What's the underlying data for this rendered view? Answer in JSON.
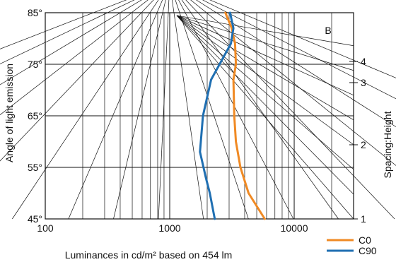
{
  "chart_data": {
    "type": "line",
    "xscale": "log",
    "xlim": [
      100,
      30000
    ],
    "ylim": [
      45,
      85
    ],
    "xlabel": "Luminances in cd/m² based on 454 lm",
    "ylabel": "Angle of light emission",
    "y2label": "Spacing:Height",
    "panel_label": "B",
    "grid": true,
    "x_ticks": [
      {
        "value": 100,
        "label": "100"
      },
      {
        "value": 1000,
        "label": "1000"
      },
      {
        "value": 10000,
        "label": "10000"
      }
    ],
    "y_ticks": [
      {
        "value": 45,
        "label": "45°"
      },
      {
        "value": 55,
        "label": "55°"
      },
      {
        "value": 65,
        "label": "65°"
      },
      {
        "value": 75,
        "label": "75°"
      },
      {
        "value": 85,
        "label": "85°"
      }
    ],
    "spacing_ticks": [
      {
        "value": 1,
        "label": "1"
      },
      {
        "value": 2,
        "label": "2"
      },
      {
        "value": 3,
        "label": "3"
      },
      {
        "value": 4,
        "label": "4"
      }
    ],
    "series": [
      {
        "name": "C0",
        "color": "#f08a24",
        "points": [
          [
            2800,
            85
          ],
          [
            3150,
            82
          ],
          [
            3350,
            79
          ],
          [
            3400,
            75
          ],
          [
            3250,
            72
          ],
          [
            3300,
            65
          ],
          [
            3400,
            60
          ],
          [
            3700,
            55
          ],
          [
            4300,
            50
          ],
          [
            5800,
            45
          ]
        ]
      },
      {
        "name": "C90",
        "color": "#1f6fb2",
        "points": [
          [
            3050,
            85
          ],
          [
            3250,
            82
          ],
          [
            3100,
            79
          ],
          [
            2650,
            76
          ],
          [
            2150,
            72
          ],
          [
            1850,
            65
          ],
          [
            1750,
            58
          ],
          [
            1950,
            53
          ],
          [
            2100,
            50
          ],
          [
            2300,
            45
          ]
        ]
      }
    ],
    "legend": {
      "position": "bottom-right",
      "entries": [
        "C0",
        "C90"
      ]
    }
  }
}
